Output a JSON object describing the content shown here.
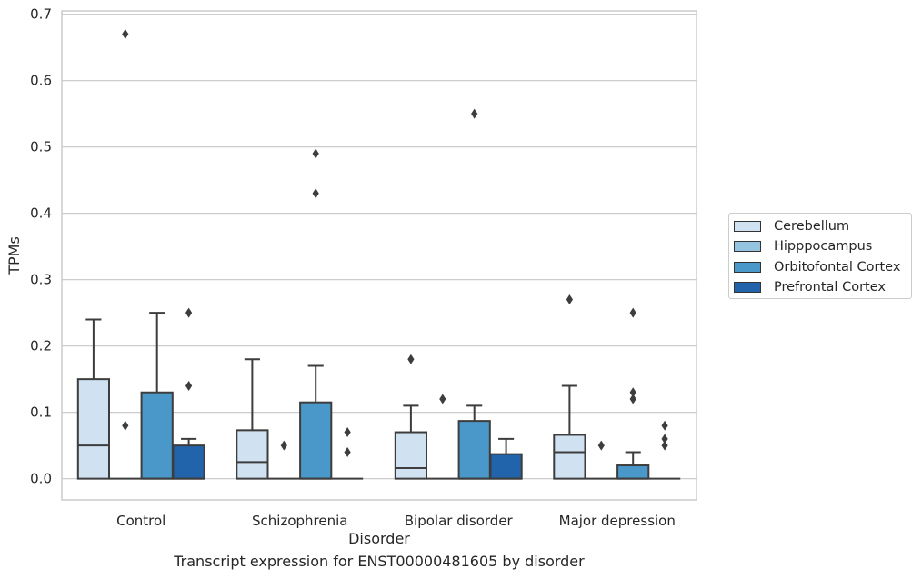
{
  "chart_data": {
    "type": "box",
    "title": "",
    "caption": "Transcript expression for ENST00000481605 by disorder",
    "xlabel": "Disorder",
    "ylabel": "TPMs",
    "ylim": [
      -0.032,
      0.705
    ],
    "yticks": [
      0.0,
      0.1,
      0.2,
      0.3,
      0.4,
      0.5,
      0.6,
      0.7
    ],
    "ytick_labels": [
      "0.0",
      "0.1",
      "0.2",
      "0.3",
      "0.4",
      "0.5",
      "0.6",
      "0.7"
    ],
    "grid": "horizontal",
    "legend_position": "right",
    "categories": [
      "Control",
      "Schizophrenia",
      "Bipolar disorder",
      "Major depression"
    ],
    "series": [
      {
        "name": "Cerebellum",
        "color": "#d0e1f2",
        "boxes": [
          {
            "q1": 0.0,
            "median": 0.05,
            "q3": 0.15,
            "whisker_low": 0.0,
            "whisker_high": 0.24,
            "outliers": []
          },
          {
            "q1": 0.0,
            "median": 0.025,
            "q3": 0.073,
            "whisker_low": 0.0,
            "whisker_high": 0.18,
            "outliers": []
          },
          {
            "q1": 0.0,
            "median": 0.016,
            "q3": 0.07,
            "whisker_low": 0.0,
            "whisker_high": 0.11,
            "outliers": [
              0.18
            ]
          },
          {
            "q1": 0.0,
            "median": 0.04,
            "q3": 0.066,
            "whisker_low": 0.0,
            "whisker_high": 0.14,
            "outliers": [
              0.27
            ]
          }
        ]
      },
      {
        "name": "Hipppocampus",
        "color": "#94c4df",
        "boxes": [
          {
            "q1": 0.0,
            "median": 0.0,
            "q3": 0.0,
            "whisker_low": 0.0,
            "whisker_high": 0.0,
            "outliers": [
              0.08,
              0.67
            ]
          },
          {
            "q1": 0.0,
            "median": 0.0,
            "q3": 0.0,
            "whisker_low": 0.0,
            "whisker_high": 0.0,
            "outliers": [
              0.05
            ]
          },
          {
            "q1": 0.0,
            "median": 0.0,
            "q3": 0.0,
            "whisker_low": 0.0,
            "whisker_high": 0.0,
            "outliers": [
              0.12
            ]
          },
          {
            "q1": 0.0,
            "median": 0.0,
            "q3": 0.0,
            "whisker_low": 0.0,
            "whisker_high": 0.0,
            "outliers": [
              0.05
            ]
          }
        ]
      },
      {
        "name": "Orbitofontal Cortex",
        "color": "#4a98c9",
        "boxes": [
          {
            "q1": 0.0,
            "median": 0.0,
            "q3": 0.13,
            "whisker_low": 0.0,
            "whisker_high": 0.25,
            "outliers": []
          },
          {
            "q1": 0.0,
            "median": 0.0,
            "q3": 0.115,
            "whisker_low": 0.0,
            "whisker_high": 0.17,
            "outliers": [
              0.43,
              0.49
            ]
          },
          {
            "q1": 0.0,
            "median": 0.0,
            "q3": 0.087,
            "whisker_low": 0.0,
            "whisker_high": 0.11,
            "outliers": [
              0.55
            ]
          },
          {
            "q1": 0.0,
            "median": 0.0,
            "q3": 0.02,
            "whisker_low": 0.0,
            "whisker_high": 0.04,
            "outliers": [
              0.12,
              0.13,
              0.25
            ]
          }
        ]
      },
      {
        "name": "Prefrontal Cortex",
        "color": "#2164ab",
        "boxes": [
          {
            "q1": 0.0,
            "median": 0.0,
            "q3": 0.05,
            "whisker_low": 0.0,
            "whisker_high": 0.06,
            "outliers": [
              0.14,
              0.25
            ]
          },
          {
            "q1": 0.0,
            "median": 0.0,
            "q3": 0.0,
            "whisker_low": 0.0,
            "whisker_high": 0.0,
            "outliers": [
              0.04,
              0.07
            ]
          },
          {
            "q1": 0.0,
            "median": 0.0,
            "q3": 0.037,
            "whisker_low": 0.0,
            "whisker_high": 0.06,
            "outliers": []
          },
          {
            "q1": 0.0,
            "median": 0.0,
            "q3": 0.0,
            "whisker_low": 0.0,
            "whisker_high": 0.0,
            "outliers": [
              0.05,
              0.06,
              0.08
            ]
          }
        ]
      }
    ]
  }
}
